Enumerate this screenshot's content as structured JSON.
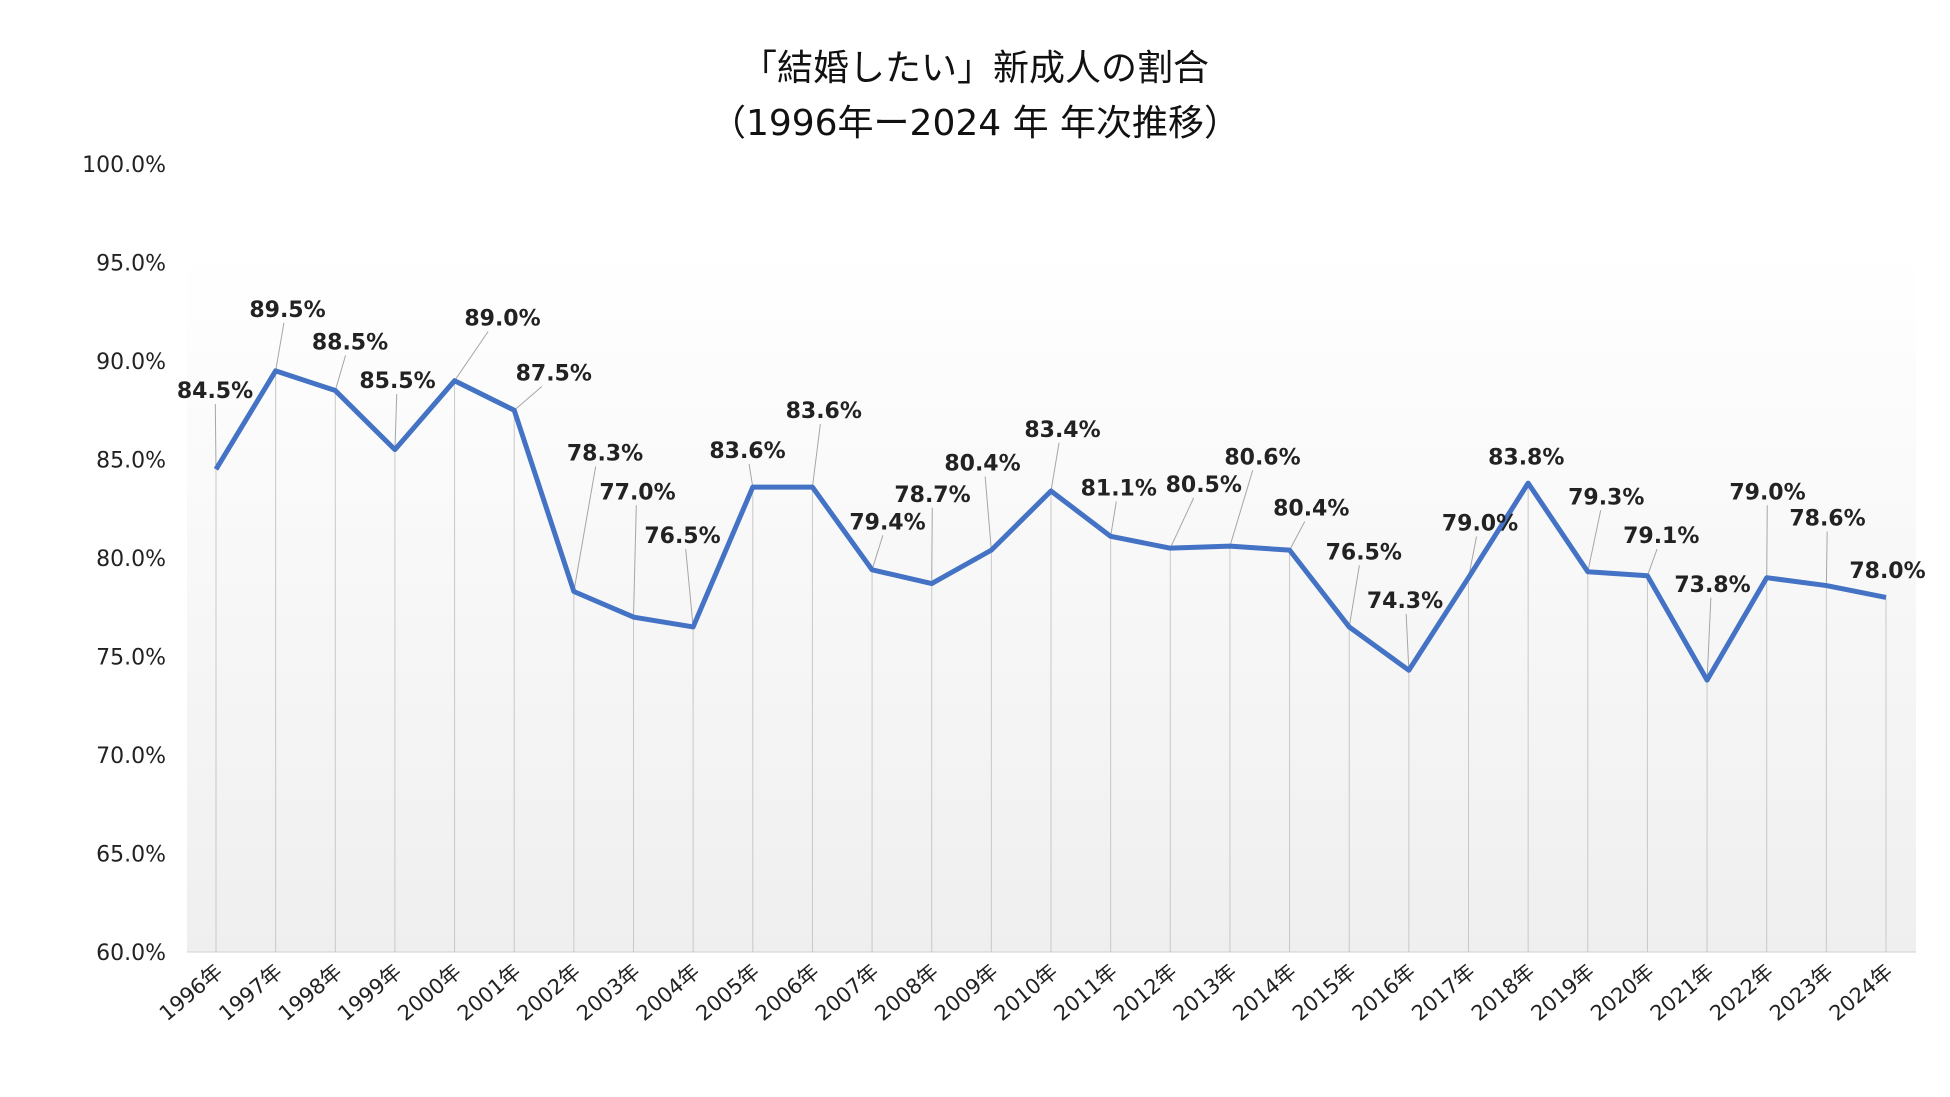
{
  "chart_data": {
    "type": "line",
    "title": [
      "「結婚したい」新成人の割合",
      "（1996年ー2024 年  年次推移）"
    ],
    "xlabel": "",
    "ylabel": "",
    "ylim": [
      60,
      100
    ],
    "yticks": [
      "60.0%",
      "65.0%",
      "70.0%",
      "75.0%",
      "80.0%",
      "85.0%",
      "90.0%",
      "95.0%",
      "100.0%"
    ],
    "categories": [
      "1996年",
      "1997年",
      "1998年",
      "1999年",
      "2000年",
      "2001年",
      "2002年",
      "2003年",
      "2004年",
      "2005年",
      "2006年",
      "2007年",
      "2008年",
      "2009年",
      "2010年",
      "2011年",
      "2012年",
      "2013年",
      "2014年",
      "2015年",
      "2016年",
      "2017年",
      "2018年",
      "2019年",
      "2020年",
      "2021年",
      "2022年",
      "2023年",
      "2024年"
    ],
    "values": [
      84.5,
      89.5,
      88.5,
      85.5,
      89.0,
      87.5,
      78.3,
      77.0,
      76.5,
      83.6,
      83.6,
      79.4,
      78.7,
      80.4,
      83.4,
      81.1,
      80.5,
      80.6,
      80.4,
      76.5,
      74.3,
      79.0,
      83.8,
      79.3,
      79.1,
      73.8,
      79.0,
      78.6,
      78.0
    ],
    "data_labels": [
      "84.5%",
      "89.5%",
      "88.5%",
      "85.5%",
      "89.0%",
      "87.5%",
      "78.3%",
      "77.0%",
      "76.5%",
      "83.6%",
      "83.6%",
      "79.4%",
      "78.7%",
      "80.4%",
      "83.4%",
      "81.1%",
      "80.5%",
      "80.6%",
      "80.4%",
      "76.5%",
      "74.3%",
      "79.0%",
      "83.8%",
      "79.3%",
      "79.1%",
      "73.8%",
      "79.0%",
      "78.6%",
      "78.0%"
    ],
    "grid": false,
    "drop_lines": true,
    "legend": "none",
    "colors": {
      "line": "#4472C4",
      "drop_line": "#c8c8c8",
      "plot_bg_top": "#ffffff",
      "plot_bg_bottom": "#efefef"
    }
  }
}
